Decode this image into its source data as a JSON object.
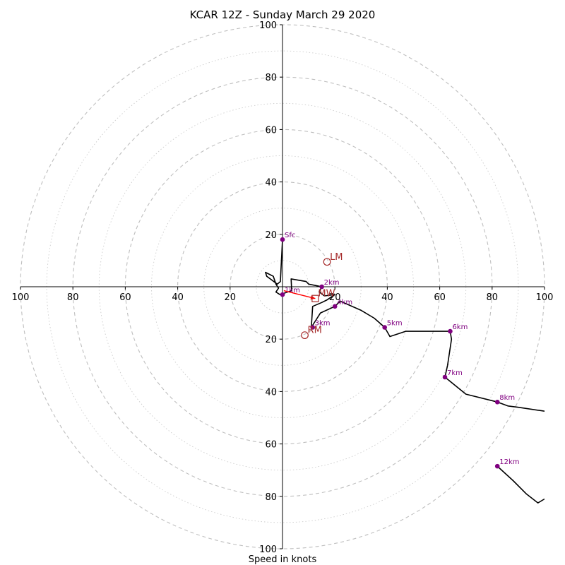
{
  "chart_data": {
    "type": "hodograph",
    "title": "KCAR 12Z - Sunday March 29 2020",
    "xlabel": "Speed in knots",
    "axis_range": [
      -100,
      100
    ],
    "ring_labels": [
      "20",
      "40",
      "60",
      "80",
      "100"
    ],
    "x_tick_labels": [
      "100",
      "80",
      "60",
      "40",
      "20",
      "20",
      "40",
      "60",
      "80",
      "100"
    ],
    "y_tick_labels": [
      "100",
      "80",
      "60",
      "40",
      "20",
      "20",
      "40",
      "60",
      "80",
      "100"
    ],
    "grid": true,
    "colors": {
      "trace": "#000000",
      "height_marker": "#800080",
      "storm_motion": "#a52a2a",
      "mean_wind_arrow": "#ff0000",
      "grid": "#bfbfbf"
    },
    "trace_segments": [
      [
        [
          0.0,
          18.0
        ],
        [
          -0.5,
          8.0
        ],
        [
          -0.8,
          2.0
        ],
        [
          -2.0,
          1.0
        ],
        [
          -6.0,
          4.0
        ],
        [
          -6.5,
          5.5
        ],
        [
          -3.5,
          4.0
        ],
        [
          -2.5,
          1.0
        ],
        [
          -1.5,
          -0.5
        ],
        [
          -2.5,
          -2.0
        ],
        [
          -1.0,
          -3.0
        ],
        [
          3.5,
          -1.5
        ],
        [
          3.3,
          3.0
        ],
        [
          9.0,
          2.0
        ],
        [
          10.0,
          1.0
        ],
        [
          15.0,
          0.0
        ],
        [
          14.0,
          -2.0
        ],
        [
          16.0,
          -3.5
        ],
        [
          20.0,
          -3.0
        ],
        [
          17.0,
          -5.0
        ],
        [
          15.0,
          -6.0
        ],
        [
          11.5,
          -7.5
        ],
        [
          11.0,
          -15.5
        ],
        [
          14.5,
          -10.0
        ],
        [
          20.0,
          -7.5
        ],
        [
          22.0,
          -5.5
        ],
        [
          30.0,
          -9.0
        ],
        [
          35.0,
          -12.0
        ],
        [
          39.0,
          -15.5
        ],
        [
          41.0,
          -19.0
        ],
        [
          47.0,
          -17.0
        ],
        [
          64.0,
          -17.0
        ],
        [
          64.5,
          -20.0
        ],
        [
          63.0,
          -30.0
        ],
        [
          62.0,
          -34.5
        ],
        [
          70.0,
          -41.0
        ],
        [
          82.0,
          -44.0
        ],
        [
          86.0,
          -45.5
        ],
        [
          90.0,
          -46.0
        ],
        [
          100.0,
          -47.5
        ]
      ],
      [
        [
          82.0,
          -68.5
        ],
        [
          88.0,
          -74.0
        ],
        [
          93.0,
          -79.0
        ],
        [
          97.5,
          -82.5
        ],
        [
          100.0,
          -81.0
        ]
      ]
    ],
    "height_markers": [
      {
        "label": "Sfc",
        "u": 0.0,
        "v": 18.0
      },
      {
        "label": "1km",
        "u": 0.0,
        "v": -3.0
      },
      {
        "label": "2km",
        "u": 15.0,
        "v": 0.0
      },
      {
        "label": "3km",
        "u": 11.5,
        "v": -15.5
      },
      {
        "label": "4km",
        "u": 20.0,
        "v": -7.5
      },
      {
        "label": "5km",
        "u": 39.0,
        "v": -15.5
      },
      {
        "label": "6km",
        "u": 64.0,
        "v": -17.0
      },
      {
        "label": "7km",
        "u": 62.0,
        "v": -34.5
      },
      {
        "label": "8km",
        "u": 82.0,
        "v": -44.0
      },
      {
        "label": "12km",
        "u": 82.0,
        "v": -68.5
      }
    ],
    "storm_motion": [
      {
        "label": "LM",
        "u": 17.0,
        "v": 9.5,
        "marker": "circle"
      },
      {
        "label": "RM",
        "u": 8.5,
        "v": -18.5,
        "marker": "circle"
      },
      {
        "label": "MW",
        "u": 12.5,
        "v": -4.5,
        "marker": "square"
      }
    ],
    "mean_wind_arrow": {
      "from": [
        0.5,
        -1.5
      ],
      "to": [
        12.5,
        -4.5
      ]
    }
  }
}
